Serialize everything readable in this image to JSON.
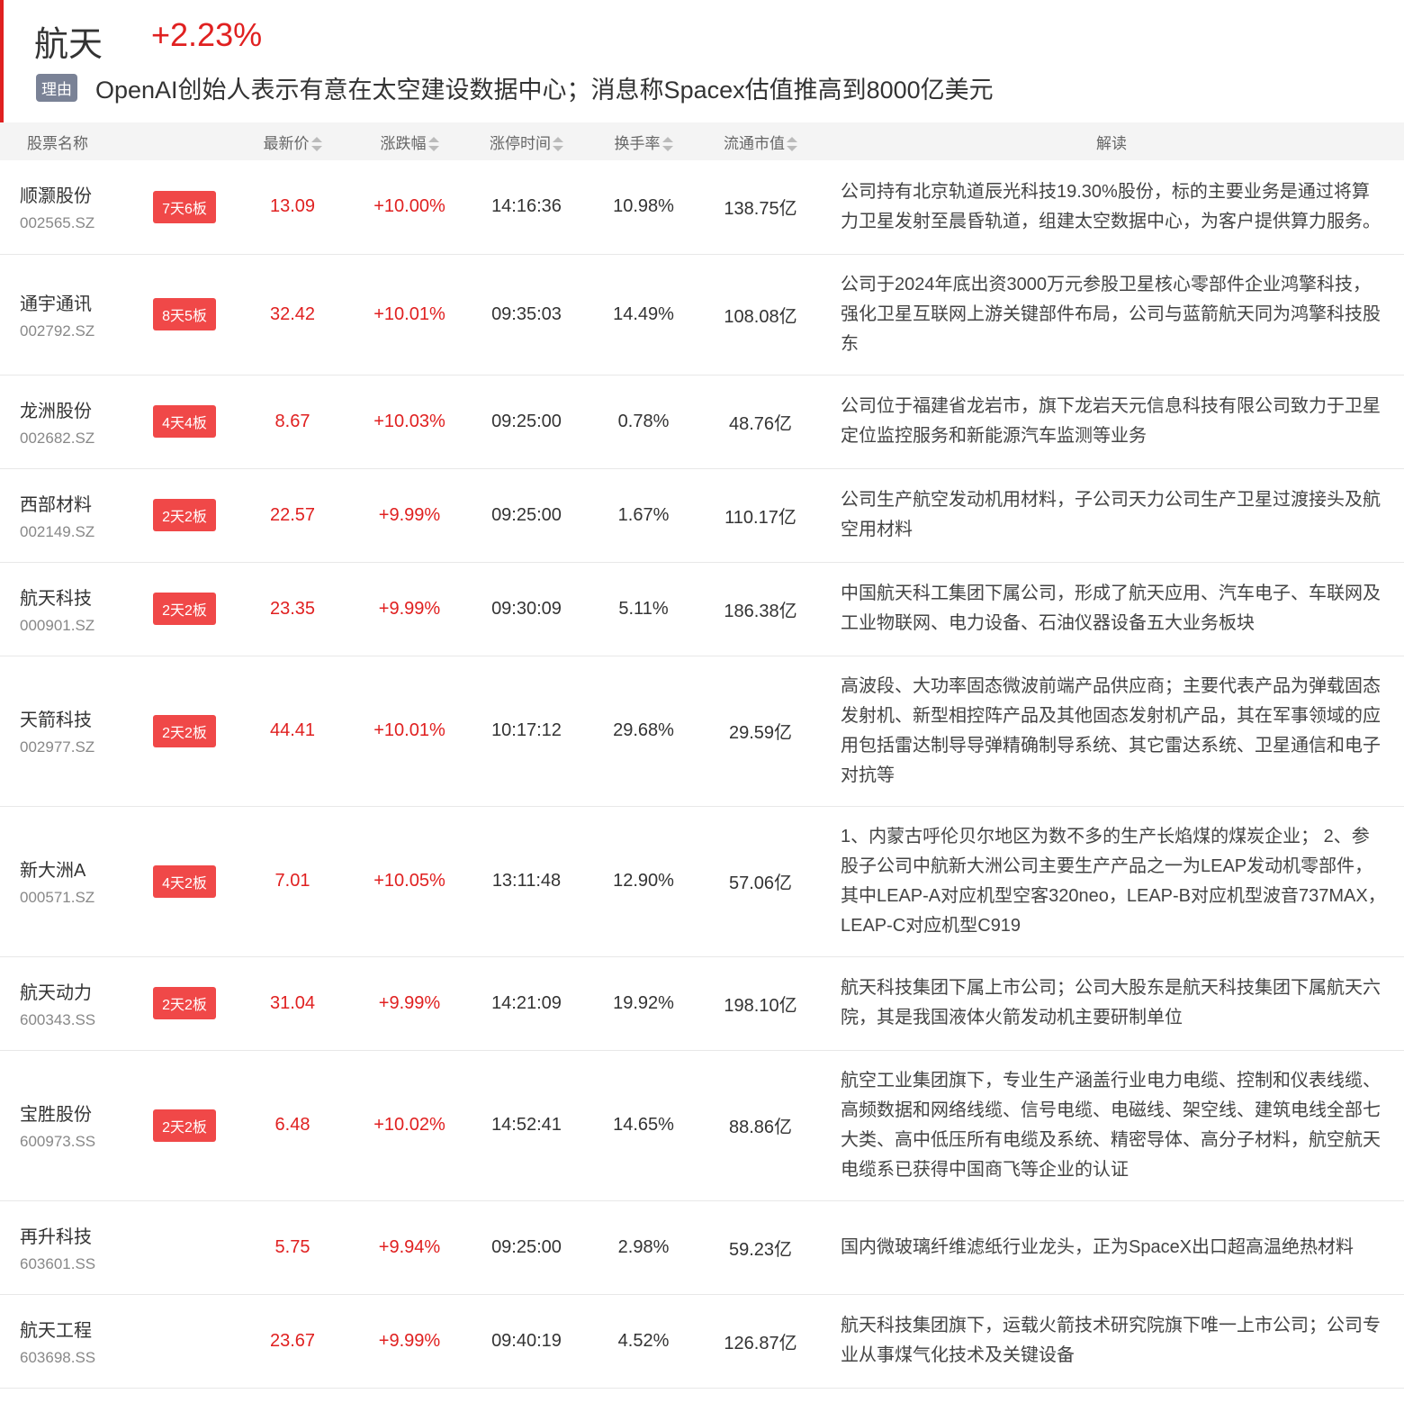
{
  "header": {
    "title": "航天",
    "change": "+2.23%",
    "reason_tag": "理由",
    "reason": "OpenAI创始人表示有意在太空建设数据中心；消息称Spacex估值推高到8000亿美元"
  },
  "columns": [
    "股票名称",
    "最新价",
    "涨跌幅",
    "涨停时间",
    "换手率",
    "流通市值",
    "解读"
  ],
  "colors": {
    "up": "#e02020",
    "badge": "#f04848",
    "tag": "#7a8296"
  },
  "rows": [
    {
      "name": "顺灏股份",
      "code": "002565.SZ",
      "badge": "7天6板",
      "price": "13.09",
      "change": "+10.00%",
      "time": "14:16:36",
      "turnover": "10.98%",
      "cap": "138.75亿",
      "desc": "公司持有北京轨道辰光科技19.30%股份，标的主要业务是通过将算力卫星发射至晨昏轨道，组建太空数据中心，为客户提供算力服务。"
    },
    {
      "name": "通宇通讯",
      "code": "002792.SZ",
      "badge": "8天5板",
      "price": "32.42",
      "change": "+10.01%",
      "time": "09:35:03",
      "turnover": "14.49%",
      "cap": "108.08亿",
      "desc": "公司于2024年底出资3000万元参股卫星核心零部件企业鸿擎科技，强化卫星互联网上游关键部件布局，公司与蓝箭航天同为鸿擎科技股东"
    },
    {
      "name": "龙洲股份",
      "code": "002682.SZ",
      "badge": "4天4板",
      "price": "8.67",
      "change": "+10.03%",
      "time": "09:25:00",
      "turnover": "0.78%",
      "cap": "48.76亿",
      "desc": "公司位于福建省龙岩市，旗下龙岩天元信息科技有限公司致力于卫星定位监控服务和新能源汽车监测等业务"
    },
    {
      "name": "西部材料",
      "code": "002149.SZ",
      "badge": "2天2板",
      "price": "22.57",
      "change": "+9.99%",
      "time": "09:25:00",
      "turnover": "1.67%",
      "cap": "110.17亿",
      "desc": "公司生产航空发动机用材料，子公司天力公司生产卫星过渡接头及航空用材料"
    },
    {
      "name": "航天科技",
      "code": "000901.SZ",
      "badge": "2天2板",
      "price": "23.35",
      "change": "+9.99%",
      "time": "09:30:09",
      "turnover": "5.11%",
      "cap": "186.38亿",
      "desc": "中国航天科工集团下属公司，形成了航天应用、汽车电子、车联网及工业物联网、电力设备、石油仪器设备五大业务板块"
    },
    {
      "name": "天箭科技",
      "code": "002977.SZ",
      "badge": "2天2板",
      "price": "44.41",
      "change": "+10.01%",
      "time": "10:17:12",
      "turnover": "29.68%",
      "cap": "29.59亿",
      "desc": "高波段、大功率固态微波前端产品供应商；主要代表产品为弹载固态发射机、新型相控阵产品及其他固态发射机产品，其在军事领域的应用包括雷达制导导弹精确制导系统、其它雷达系统、卫星通信和电子对抗等"
    },
    {
      "name": "新大洲A",
      "code": "000571.SZ",
      "badge": "4天2板",
      "price": "7.01",
      "change": "+10.05%",
      "time": "13:11:48",
      "turnover": "12.90%",
      "cap": "57.06亿",
      "desc": "1、内蒙古呼伦贝尔地区为数不多的生产长焰煤的煤炭企业； 2、参股子公司中航新大洲公司主要生产产品之一为LEAP发动机零部件，其中LEAP-A对应机型空客320neo，LEAP-B对应机型波音737MAX，LEAP-C对应机型C919"
    },
    {
      "name": "航天动力",
      "code": "600343.SS",
      "badge": "2天2板",
      "price": "31.04",
      "change": "+9.99%",
      "time": "14:21:09",
      "turnover": "19.92%",
      "cap": "198.10亿",
      "desc": "航天科技集团下属上市公司；公司大股东是航天科技集团下属航天六院，其是我国液体火箭发动机主要研制单位"
    },
    {
      "name": "宝胜股份",
      "code": "600973.SS",
      "badge": "2天2板",
      "price": "6.48",
      "change": "+10.02%",
      "time": "14:52:41",
      "turnover": "14.65%",
      "cap": "88.86亿",
      "desc": "航空工业集团旗下，专业生产涵盖行业电力电缆、控制和仪表线缆、高频数据和网络线缆、信号电缆、电磁线、架空线、建筑电线全部七大类、高中低压所有电缆及系统、精密导体、高分子材料，航空航天电缆系已获得中国商飞等企业的认证"
    },
    {
      "name": "再升科技",
      "code": "603601.SS",
      "badge": "",
      "price": "5.75",
      "change": "+9.94%",
      "time": "09:25:00",
      "turnover": "2.98%",
      "cap": "59.23亿",
      "desc": "国内微玻璃纤维滤纸行业龙头，正为SpaceX出口超高温绝热材料"
    },
    {
      "name": "航天工程",
      "code": "603698.SS",
      "badge": "",
      "price": "23.67",
      "change": "+9.99%",
      "time": "09:40:19",
      "turnover": "4.52%",
      "cap": "126.87亿",
      "desc": "航天科技集团旗下，运载火箭技术研究院旗下唯一上市公司；公司专业从事煤气化技术及关键设备"
    }
  ]
}
